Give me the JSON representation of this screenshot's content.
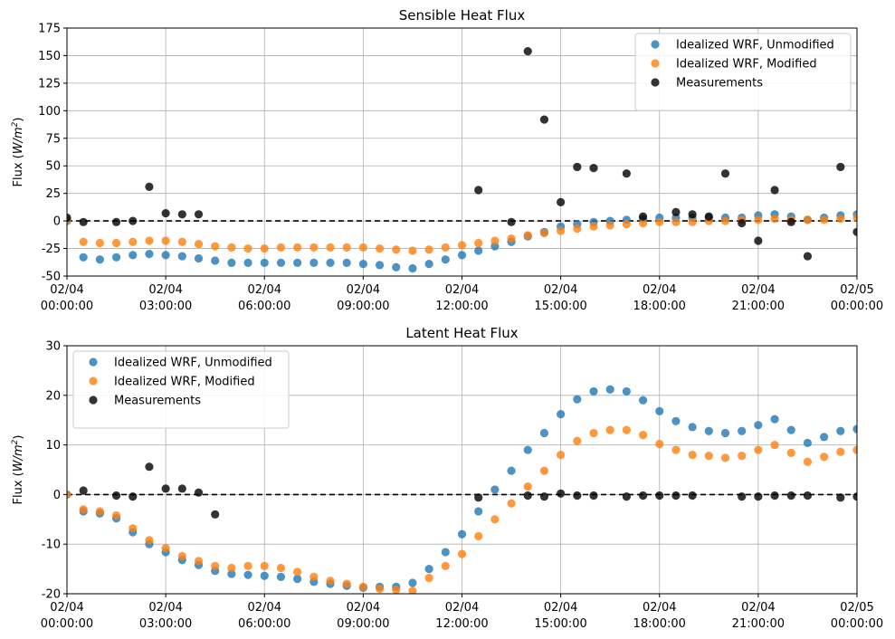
{
  "colors": {
    "unmodified": "#1f77b4",
    "modified": "#ff7f0e",
    "measurements": "#000000",
    "grid": "#b0b0b0",
    "zero_line": "#000000"
  },
  "chart_data": [
    {
      "type": "scatter",
      "title": "Sensible Heat Flux",
      "ylabel": "Flux (W/m²)",
      "ylabel_parts": {
        "pre": "Flux (",
        "var": "W/m",
        "sup": "2",
        "post": ")"
      },
      "xlabel": "",
      "xlim": [
        0,
        24
      ],
      "ylim": [
        -50,
        175
      ],
      "yticks": [
        -50,
        -25,
        0,
        25,
        50,
        75,
        100,
        125,
        150,
        175
      ],
      "xtick_values": [
        0,
        3,
        6,
        9,
        12,
        15,
        18,
        21,
        24
      ],
      "xtick_labels": [
        [
          "02/04",
          "00:00:00"
        ],
        [
          "02/04",
          "03:00:00"
        ],
        [
          "02/04",
          "06:00:00"
        ],
        [
          "02/04",
          "09:00:00"
        ],
        [
          "02/04",
          "12:00:00"
        ],
        [
          "02/04",
          "15:00:00"
        ],
        [
          "02/04",
          "18:00:00"
        ],
        [
          "02/04",
          "21:00:00"
        ],
        [
          "02/05",
          "00:00:00"
        ]
      ],
      "grid": true,
      "legend_position": "top-right",
      "zero_line": true,
      "series": [
        {
          "name": "Idealized WRF, Unmodified",
          "color_key": "unmodified",
          "x": [
            0,
            0.5,
            1,
            1.5,
            2,
            2.5,
            3,
            3.5,
            4,
            4.5,
            5,
            5.5,
            6,
            6.5,
            7,
            7.5,
            8,
            8.5,
            9,
            9.5,
            10,
            10.5,
            11,
            11.5,
            12,
            12.5,
            13,
            13.5,
            14,
            14.5,
            15,
            15.5,
            16,
            16.5,
            17,
            17.5,
            18,
            18.5,
            19,
            19.5,
            20,
            20.5,
            21,
            21.5,
            22,
            22.5,
            23,
            23.5,
            24
          ],
          "y": [
            0,
            -33,
            -35,
            -33,
            -31,
            -30,
            -31,
            -32,
            -34,
            -36,
            -38,
            -38,
            -38,
            -38,
            -38,
            -38,
            -38,
            -38,
            -39,
            -40,
            -42,
            -43,
            -39,
            -35,
            -31,
            -27,
            -23,
            -19,
            -14,
            -10,
            -5,
            -3,
            -1,
            0,
            1,
            2,
            3,
            3,
            3,
            3,
            3,
            3,
            5,
            6,
            4,
            1,
            3,
            5,
            6
          ]
        },
        {
          "name": "Idealized WRF, Modified",
          "color_key": "modified",
          "x": [
            0,
            0.5,
            1,
            1.5,
            2,
            2.5,
            3,
            3.5,
            4,
            4.5,
            5,
            5.5,
            6,
            6.5,
            7,
            7.5,
            8,
            8.5,
            9,
            9.5,
            10,
            10.5,
            11,
            11.5,
            12,
            12.5,
            13,
            13.5,
            14,
            14.5,
            15,
            15.5,
            16,
            16.5,
            17,
            17.5,
            18,
            18.5,
            19,
            19.5,
            20,
            20.5,
            21,
            21.5,
            22,
            22.5,
            23,
            23.5,
            24
          ],
          "y": [
            1,
            -19,
            -20,
            -20,
            -19,
            -18,
            -18,
            -19,
            -21,
            -23,
            -24,
            -25,
            -25,
            -24,
            -24,
            -24,
            -24,
            -24,
            -24,
            -25,
            -26,
            -27,
            -26,
            -24,
            -22,
            -20,
            -18,
            -16,
            -13,
            -11,
            -9,
            -7,
            -5,
            -4,
            -3,
            -2,
            -1,
            -1,
            -1,
            0,
            0,
            1,
            1,
            2,
            1,
            1,
            1,
            2,
            3
          ]
        },
        {
          "name": "Measurements",
          "color_key": "measurements",
          "x": [
            0,
            0.5,
            1.5,
            2,
            2.5,
            3,
            3.5,
            4,
            12.5,
            13.5,
            14,
            14.5,
            15,
            15.5,
            16,
            17,
            17.5,
            18.5,
            19,
            19.5,
            20,
            20.5,
            21,
            21.5,
            22,
            22.5,
            23.5,
            24
          ],
          "y": [
            3,
            -1,
            -1,
            0,
            31,
            7,
            6,
            6,
            28,
            -1,
            154,
            92,
            17,
            49,
            48,
            43,
            4,
            8,
            6,
            4,
            43,
            -2,
            -18,
            28,
            -1,
            -32,
            49,
            -10
          ]
        }
      ]
    },
    {
      "type": "scatter",
      "title": "Latent Heat Flux",
      "ylabel": "Flux (W/m²)",
      "ylabel_parts": {
        "pre": "Flux (",
        "var": "W/m",
        "sup": "2",
        "post": ")"
      },
      "xlabel": "",
      "xlim": [
        0,
        24
      ],
      "ylim": [
        -20,
        30
      ],
      "yticks": [
        -20,
        -10,
        0,
        10,
        20,
        30
      ],
      "xtick_values": [
        0,
        3,
        6,
        9,
        12,
        15,
        18,
        21,
        24
      ],
      "xtick_labels": [
        [
          "02/04",
          "00:00:00"
        ],
        [
          "02/04",
          "03:00:00"
        ],
        [
          "02/04",
          "06:00:00"
        ],
        [
          "02/04",
          "09:00:00"
        ],
        [
          "02/04",
          "12:00:00"
        ],
        [
          "02/04",
          "15:00:00"
        ],
        [
          "02/04",
          "18:00:00"
        ],
        [
          "02/04",
          "21:00:00"
        ],
        [
          "02/05",
          "00:00:00"
        ]
      ],
      "grid": true,
      "legend_position": "top-left",
      "zero_line": true,
      "series": [
        {
          "name": "Idealized WRF, Unmodified",
          "color_key": "unmodified",
          "x": [
            0,
            0.5,
            1,
            1.5,
            2,
            2.5,
            3,
            3.5,
            4,
            4.5,
            5,
            5.5,
            6,
            6.5,
            7,
            7.5,
            8,
            8.5,
            9,
            9.5,
            10,
            10.5,
            11,
            11.5,
            12,
            12.5,
            13,
            13.5,
            14,
            14.5,
            15,
            15.5,
            16,
            16.5,
            17,
            17.5,
            18,
            18.5,
            19,
            19.5,
            20,
            20.5,
            21,
            21.5,
            22,
            22.5,
            23,
            23.5,
            24
          ],
          "y": [
            0,
            -3.4,
            -3.8,
            -4.8,
            -7.6,
            -10.0,
            -11.6,
            -13.2,
            -14.2,
            -15.4,
            -16.0,
            -16.2,
            -16.4,
            -16.6,
            -17.0,
            -17.6,
            -18.0,
            -18.4,
            -18.8,
            -18.6,
            -18.6,
            -17.8,
            -15.0,
            -11.6,
            -8.0,
            -3.4,
            1.0,
            4.8,
            9.0,
            12.4,
            16.2,
            19.2,
            20.8,
            21.2,
            20.8,
            19.0,
            16.8,
            14.8,
            13.6,
            12.8,
            12.4,
            12.8,
            14.0,
            15.2,
            13.0,
            10.4,
            11.6,
            12.8,
            13.2
          ]
        },
        {
          "name": "Idealized WRF, Modified",
          "color_key": "modified",
          "x": [
            0,
            0.5,
            1,
            1.5,
            2,
            2.5,
            3,
            3.5,
            4,
            4.5,
            5,
            5.5,
            6,
            6.5,
            7,
            7.5,
            8,
            8.5,
            9,
            9.5,
            10,
            10.5,
            11,
            11.5,
            12,
            12.5,
            13,
            13.5,
            14,
            14.5,
            15,
            15.5,
            16,
            16.5,
            17,
            17.5,
            18,
            18.5,
            19,
            19.5,
            20,
            20.5,
            21,
            21.5,
            22,
            22.5,
            23,
            23.5,
            24
          ],
          "y": [
            0,
            -3.0,
            -3.4,
            -4.2,
            -6.8,
            -9.2,
            -10.8,
            -12.4,
            -13.4,
            -14.4,
            -14.8,
            -14.4,
            -14.4,
            -14.8,
            -15.6,
            -16.6,
            -17.4,
            -18.0,
            -18.6,
            -19.0,
            -19.2,
            -19.4,
            -16.8,
            -14.4,
            -12.0,
            -8.4,
            -5.0,
            -1.8,
            1.6,
            4.8,
            8.0,
            10.8,
            12.4,
            13.0,
            13.0,
            12.0,
            10.2,
            9.0,
            8.0,
            7.8,
            7.4,
            7.8,
            9.0,
            10.0,
            8.4,
            6.6,
            7.6,
            8.6,
            9.0
          ]
        },
        {
          "name": "Measurements",
          "color_key": "measurements",
          "x": [
            0.5,
            1.5,
            2,
            2.5,
            3,
            3.5,
            4,
            4.5,
            12.5,
            14,
            14.5,
            15,
            15.5,
            16,
            17,
            17.5,
            18,
            18.5,
            19,
            20.5,
            21,
            21.5,
            22,
            22.5,
            23.5,
            24
          ],
          "y": [
            0.8,
            -0.2,
            -0.4,
            5.6,
            1.2,
            1.2,
            0.4,
            -4.0,
            -0.6,
            -0.2,
            -0.4,
            0.2,
            -0.2,
            -0.2,
            -0.4,
            -0.2,
            -0.2,
            -0.2,
            -0.2,
            -0.4,
            -0.4,
            -0.2,
            -0.2,
            -0.2,
            -0.6,
            -0.4
          ]
        }
      ]
    }
  ]
}
